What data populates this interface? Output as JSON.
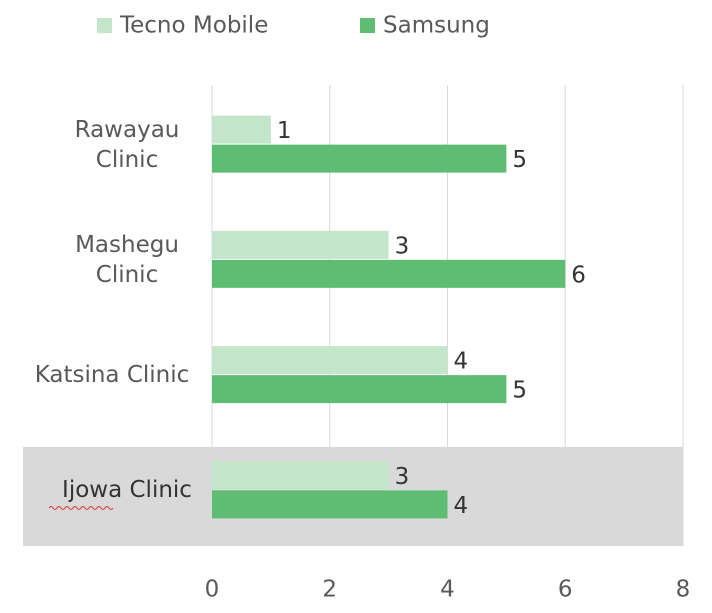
{
  "chart_data": {
    "type": "bar",
    "orientation": "horizontal",
    "categories": [
      "Rawayau Clinic",
      "Mashegu Clinic",
      "Katsina Clinic",
      "Ijowa Clinic"
    ],
    "series": [
      {
        "name": "Tecno Mobile",
        "color": "#c3e6ca",
        "values": [
          1,
          3,
          4,
          3
        ]
      },
      {
        "name": "Samsung",
        "color": "#5ebd73",
        "values": [
          5,
          6,
          5,
          4
        ]
      }
    ],
    "xlim": [
      0,
      8
    ],
    "xticks": [
      0,
      2,
      4,
      6,
      8
    ],
    "grid": true,
    "legend": "top"
  }
}
